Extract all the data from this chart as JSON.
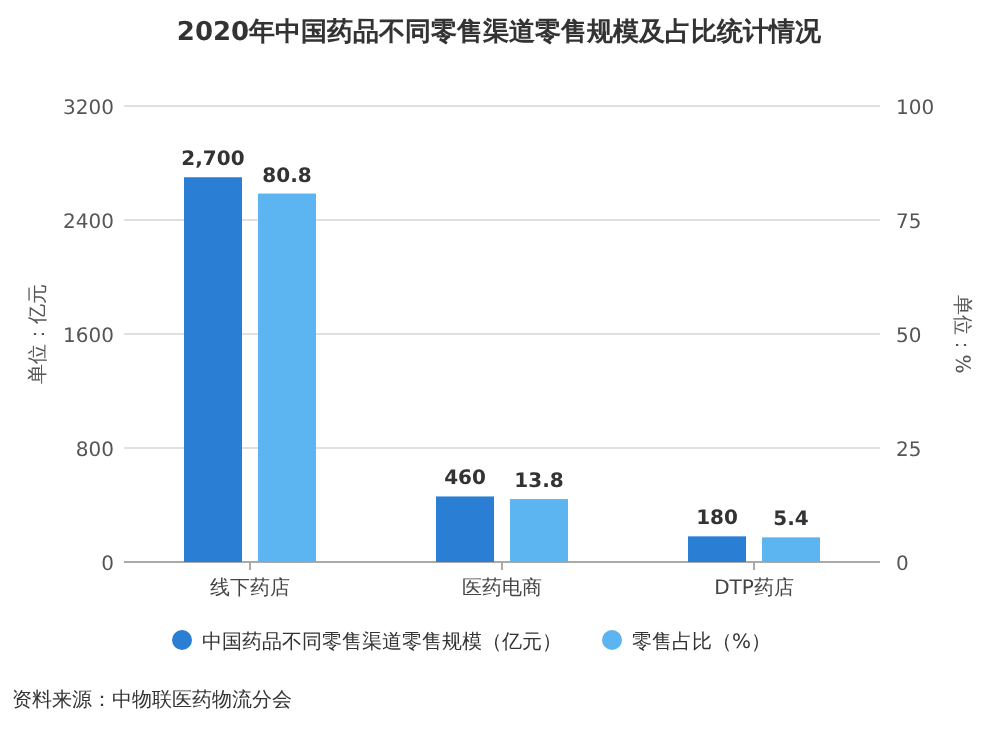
{
  "chart_data": {
    "type": "bar",
    "title": "2020年中国药品不同零售渠道零售规模及占比统计情况",
    "categories": [
      "线下药店",
      "医药电商",
      "DTP药店"
    ],
    "series": [
      {
        "name": "中国药品不同零售渠道零售规模（亿元）",
        "color": "#2a7fd4",
        "values": [
          2700,
          460,
          180
        ],
        "value_labels": [
          "2,700",
          "460",
          "180"
        ]
      },
      {
        "name": "零售占比（%）",
        "color": "#5cb4f0",
        "values": [
          80.8,
          13.8,
          5.4
        ],
        "axis": "y2",
        "value_labels": [
          "80.8",
          "13.8",
          "5.4"
        ]
      }
    ],
    "ylabel": "单位：亿元",
    "y2label": "单位：%",
    "ylim": [
      0,
      3200
    ],
    "yticks": [
      0,
      800,
      1600,
      2400,
      3200
    ],
    "y2lim": [
      0,
      100
    ],
    "y2ticks": [
      0,
      25,
      50,
      75,
      100
    ],
    "grid": "y",
    "legend": "bottom",
    "annotations": [
      "资料来源：中物联医药物流分会"
    ]
  }
}
